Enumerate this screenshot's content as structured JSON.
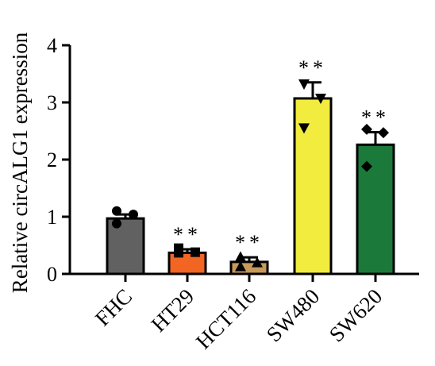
{
  "chart_data": {
    "type": "bar",
    "ylabel": "Relative circALG1  expression",
    "xlabel": "",
    "ylim": [
      0,
      4
    ],
    "yticks": [
      "0",
      "1",
      "2",
      "3",
      "4"
    ],
    "grid": false,
    "categories": [
      "FHC",
      "HT29",
      "HCT116",
      "SW480",
      "SW620"
    ],
    "values": [
      0.97,
      0.37,
      0.21,
      3.07,
      2.26
    ],
    "errors": [
      0.07,
      0.06,
      0.08,
      0.28,
      0.22
    ],
    "colors": [
      "#616161",
      "#f26522",
      "#c79a5b",
      "#f2ec3e",
      "#1b7a3a"
    ],
    "significance": [
      "",
      "**",
      "**",
      "**",
      "**"
    ],
    "points": [
      {
        "marker": "circle",
        "values": [
          1.1,
          1.04,
          0.88
        ]
      },
      {
        "marker": "square",
        "values": [
          0.45,
          0.38,
          0.37
        ]
      },
      {
        "marker": "triangle-up",
        "values": [
          0.3,
          0.2,
          0.13
        ]
      },
      {
        "marker": "triangle-down",
        "values": [
          3.32,
          3.07,
          2.55
        ]
      },
      {
        "marker": "diamond",
        "values": [
          2.53,
          2.47,
          1.88
        ]
      }
    ]
  }
}
